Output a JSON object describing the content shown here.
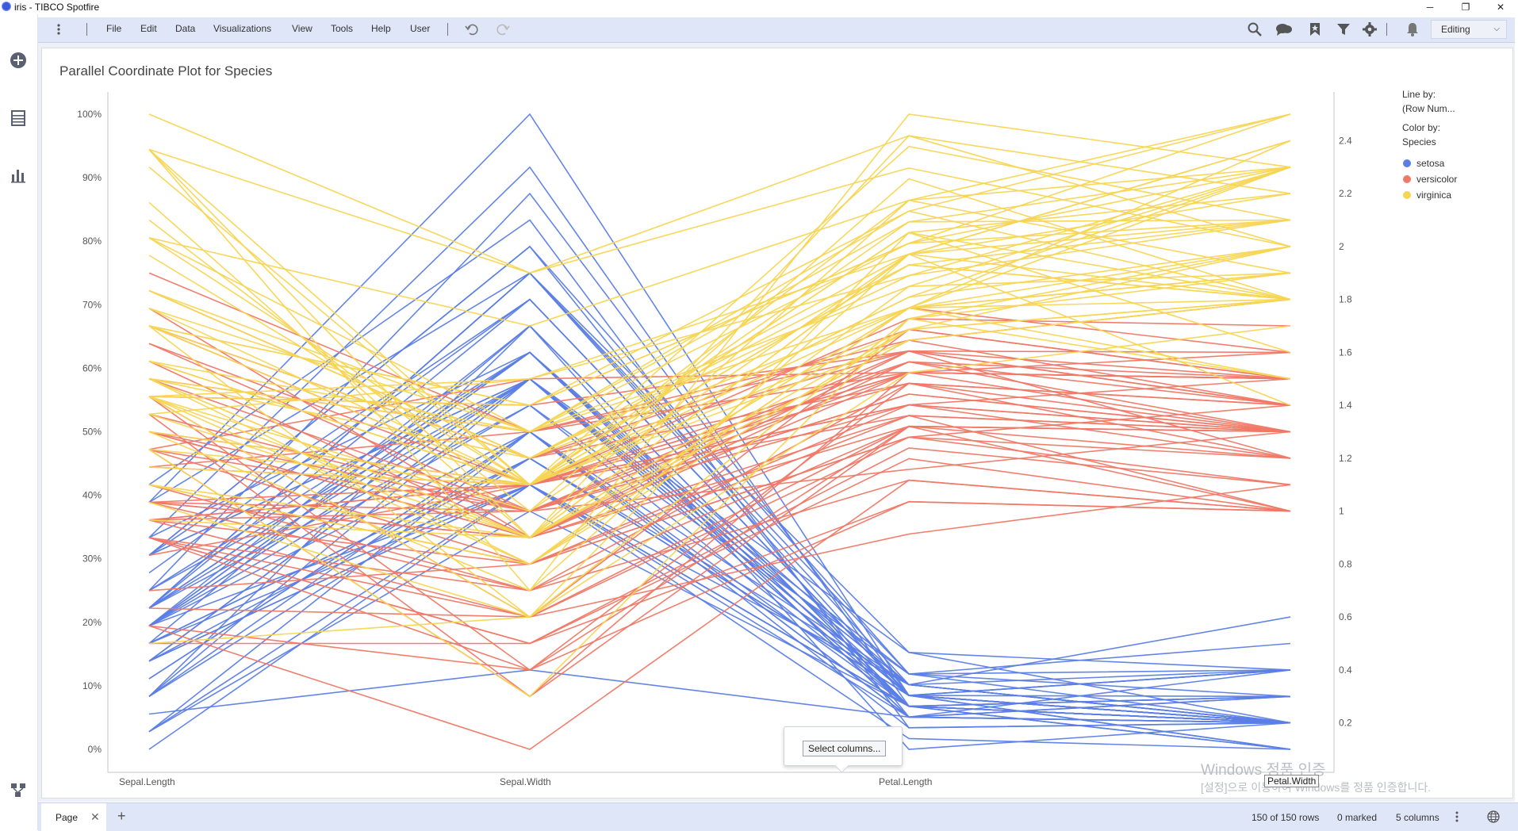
{
  "window": {
    "title": "iris - TIBCO Spotfire",
    "minimize": "─",
    "restore": "❐",
    "close": "✕"
  },
  "menu": [
    "File",
    "Edit",
    "Data",
    "Visualizations",
    "View",
    "Tools",
    "Help",
    "User"
  ],
  "mode_label": "Editing",
  "viz_title": "Parallel Coordinate Plot for Species",
  "legend": {
    "line_by_label": "Line by:",
    "line_by_value": "(Row Num...",
    "color_by_label": "Color by:",
    "color_by_value": "Species",
    "items": [
      {
        "label": "setosa",
        "color": "#5b7ee5"
      },
      {
        "label": "versicolor",
        "color": "#f07866"
      },
      {
        "label": "virginica",
        "color": "#f7d553"
      }
    ]
  },
  "popup": {
    "select_columns": "Select columns..."
  },
  "axis_tooltip": "Petal.Width",
  "watermark": {
    "line1": "Windows 정품 인증",
    "line2": "[설정]으로 이동하여 Windows를 정품 인증합니다."
  },
  "status": {
    "page_tab": "Page",
    "rows": "150 of 150 rows",
    "marked": "0 marked",
    "columns": "5 columns"
  },
  "chart_data": {
    "type": "parallel_coordinates",
    "title": "Parallel Coordinate Plot for Species",
    "axes": [
      "Sepal.Length",
      "Sepal.Width",
      "Petal.Length",
      "Petal.Width"
    ],
    "left_axis_ticks": [
      "100%",
      "90%",
      "80%",
      "70%",
      "60%",
      "50%",
      "40%",
      "30%",
      "20%",
      "10%",
      "0%"
    ],
    "right_axis_label": "Petal.Width",
    "right_axis_ticks": [
      2.4,
      2.2,
      2,
      1.8,
      1.6,
      1.4,
      1.2,
      1,
      0.8,
      0.6,
      0.4,
      0.2
    ],
    "right_axis_range": [
      0.1,
      2.5
    ],
    "color_by": "Species",
    "series_colors": {
      "setosa": "#5b7ee5",
      "versicolor": "#f07866",
      "virginica": "#f7d553"
    },
    "species_order": [
      "setosa",
      "versicolor",
      "virginica"
    ],
    "rows": {
      "setosa": [
        [
          5.1,
          3.5,
          1.4,
          0.2
        ],
        [
          4.9,
          3.0,
          1.4,
          0.2
        ],
        [
          4.7,
          3.2,
          1.3,
          0.2
        ],
        [
          4.6,
          3.1,
          1.5,
          0.2
        ],
        [
          5.0,
          3.6,
          1.4,
          0.2
        ],
        [
          5.4,
          3.9,
          1.7,
          0.4
        ],
        [
          4.6,
          3.4,
          1.4,
          0.3
        ],
        [
          5.0,
          3.4,
          1.5,
          0.2
        ],
        [
          4.4,
          2.9,
          1.4,
          0.2
        ],
        [
          4.9,
          3.1,
          1.5,
          0.1
        ],
        [
          5.4,
          3.7,
          1.5,
          0.2
        ],
        [
          4.8,
          3.4,
          1.6,
          0.2
        ],
        [
          4.8,
          3.0,
          1.4,
          0.1
        ],
        [
          4.3,
          3.0,
          1.1,
          0.1
        ],
        [
          5.8,
          4.0,
          1.2,
          0.2
        ],
        [
          5.7,
          4.4,
          1.5,
          0.4
        ],
        [
          5.4,
          3.9,
          1.3,
          0.4
        ],
        [
          5.1,
          3.5,
          1.4,
          0.3
        ],
        [
          5.7,
          3.8,
          1.7,
          0.3
        ],
        [
          5.1,
          3.8,
          1.5,
          0.3
        ],
        [
          5.4,
          3.4,
          1.7,
          0.2
        ],
        [
          5.1,
          3.7,
          1.5,
          0.4
        ],
        [
          4.6,
          3.6,
          1.0,
          0.2
        ],
        [
          5.1,
          3.3,
          1.7,
          0.5
        ],
        [
          4.8,
          3.4,
          1.9,
          0.2
        ],
        [
          5.0,
          3.0,
          1.6,
          0.2
        ],
        [
          5.0,
          3.4,
          1.6,
          0.4
        ],
        [
          5.2,
          3.5,
          1.5,
          0.2
        ],
        [
          5.2,
          3.4,
          1.4,
          0.2
        ],
        [
          4.7,
          3.2,
          1.6,
          0.2
        ],
        [
          4.8,
          3.1,
          1.6,
          0.2
        ],
        [
          5.4,
          3.4,
          1.5,
          0.4
        ],
        [
          5.2,
          4.1,
          1.5,
          0.1
        ],
        [
          5.5,
          4.2,
          1.4,
          0.2
        ],
        [
          4.9,
          3.1,
          1.5,
          0.2
        ],
        [
          5.0,
          3.2,
          1.2,
          0.2
        ],
        [
          5.5,
          3.5,
          1.3,
          0.2
        ],
        [
          4.9,
          3.6,
          1.4,
          0.1
        ],
        [
          4.4,
          3.0,
          1.3,
          0.2
        ],
        [
          5.1,
          3.4,
          1.5,
          0.2
        ],
        [
          5.0,
          3.5,
          1.3,
          0.3
        ],
        [
          4.5,
          2.3,
          1.3,
          0.3
        ],
        [
          4.4,
          3.2,
          1.3,
          0.2
        ],
        [
          5.0,
          3.5,
          1.6,
          0.6
        ],
        [
          5.1,
          3.8,
          1.9,
          0.4
        ],
        [
          4.8,
          3.0,
          1.4,
          0.3
        ],
        [
          5.1,
          3.8,
          1.6,
          0.2
        ],
        [
          4.6,
          3.2,
          1.4,
          0.2
        ],
        [
          5.3,
          3.7,
          1.5,
          0.2
        ],
        [
          5.0,
          3.3,
          1.4,
          0.2
        ]
      ],
      "versicolor": [
        [
          7.0,
          3.2,
          4.7,
          1.4
        ],
        [
          6.4,
          3.2,
          4.5,
          1.5
        ],
        [
          6.9,
          3.1,
          4.9,
          1.5
        ],
        [
          5.5,
          2.3,
          4.0,
          1.3
        ],
        [
          6.5,
          2.8,
          4.6,
          1.5
        ],
        [
          5.7,
          2.8,
          4.5,
          1.3
        ],
        [
          6.3,
          3.3,
          4.7,
          1.6
        ],
        [
          4.9,
          2.4,
          3.3,
          1.0
        ],
        [
          6.6,
          2.9,
          4.6,
          1.3
        ],
        [
          5.2,
          2.7,
          3.9,
          1.4
        ],
        [
          5.0,
          2.0,
          3.5,
          1.0
        ],
        [
          5.9,
          3.0,
          4.2,
          1.5
        ],
        [
          6.0,
          2.2,
          4.0,
          1.0
        ],
        [
          6.1,
          2.9,
          4.7,
          1.4
        ],
        [
          5.6,
          2.9,
          3.6,
          1.3
        ],
        [
          6.7,
          3.1,
          4.4,
          1.4
        ],
        [
          5.6,
          3.0,
          4.5,
          1.5
        ],
        [
          5.8,
          2.7,
          4.1,
          1.0
        ],
        [
          6.2,
          2.2,
          4.5,
          1.5
        ],
        [
          5.6,
          2.5,
          3.9,
          1.1
        ],
        [
          5.9,
          3.2,
          4.8,
          1.8
        ],
        [
          6.1,
          2.8,
          4.0,
          1.3
        ],
        [
          6.3,
          2.5,
          4.9,
          1.5
        ],
        [
          6.1,
          2.8,
          4.7,
          1.2
        ],
        [
          6.4,
          2.9,
          4.3,
          1.3
        ],
        [
          6.6,
          3.0,
          4.4,
          1.4
        ],
        [
          6.8,
          2.8,
          4.8,
          1.4
        ],
        [
          6.7,
          3.0,
          5.0,
          1.7
        ],
        [
          6.0,
          2.9,
          4.5,
          1.5
        ],
        [
          5.7,
          2.6,
          3.5,
          1.0
        ],
        [
          5.5,
          2.4,
          3.8,
          1.1
        ],
        [
          5.5,
          2.4,
          3.7,
          1.0
        ],
        [
          5.8,
          2.7,
          3.9,
          1.2
        ],
        [
          6.0,
          2.7,
          5.1,
          1.6
        ],
        [
          5.4,
          3.0,
          4.5,
          1.5
        ],
        [
          6.0,
          3.4,
          4.5,
          1.6
        ],
        [
          6.7,
          3.1,
          4.7,
          1.5
        ],
        [
          6.3,
          2.3,
          4.4,
          1.3
        ],
        [
          5.6,
          3.0,
          4.1,
          1.3
        ],
        [
          5.5,
          2.5,
          4.0,
          1.3
        ],
        [
          5.5,
          2.6,
          4.4,
          1.2
        ],
        [
          6.1,
          3.0,
          4.6,
          1.4
        ],
        [
          5.8,
          2.6,
          4.0,
          1.2
        ],
        [
          5.0,
          2.3,
          3.3,
          1.0
        ],
        [
          5.6,
          2.7,
          4.2,
          1.3
        ],
        [
          5.7,
          3.0,
          4.2,
          1.2
        ],
        [
          5.7,
          2.9,
          4.2,
          1.3
        ],
        [
          6.2,
          2.9,
          4.3,
          1.3
        ],
        [
          5.1,
          2.5,
          3.0,
          1.1
        ],
        [
          5.7,
          2.8,
          4.1,
          1.3
        ]
      ],
      "virginica": [
        [
          6.3,
          3.3,
          6.0,
          2.5
        ],
        [
          5.8,
          2.7,
          5.1,
          1.9
        ],
        [
          7.1,
          3.0,
          5.9,
          2.1
        ],
        [
          6.3,
          2.9,
          5.6,
          1.8
        ],
        [
          6.5,
          3.0,
          5.8,
          2.2
        ],
        [
          7.6,
          3.0,
          6.6,
          2.1
        ],
        [
          4.9,
          2.5,
          4.5,
          1.7
        ],
        [
          7.3,
          2.9,
          6.3,
          1.8
        ],
        [
          6.7,
          2.5,
          5.8,
          1.8
        ],
        [
          7.2,
          3.6,
          6.1,
          2.5
        ],
        [
          6.5,
          3.2,
          5.1,
          2.0
        ],
        [
          6.4,
          2.7,
          5.3,
          1.9
        ],
        [
          6.8,
          3.0,
          5.5,
          2.1
        ],
        [
          5.7,
          2.5,
          5.0,
          2.0
        ],
        [
          5.8,
          2.8,
          5.1,
          2.4
        ],
        [
          6.4,
          3.2,
          5.3,
          2.3
        ],
        [
          6.5,
          3.0,
          5.5,
          1.8
        ],
        [
          7.7,
          3.8,
          6.7,
          2.2
        ],
        [
          7.7,
          2.6,
          6.9,
          2.3
        ],
        [
          6.0,
          2.2,
          5.0,
          1.5
        ],
        [
          6.9,
          3.2,
          5.7,
          2.3
        ],
        [
          5.6,
          2.8,
          4.9,
          2.0
        ],
        [
          7.7,
          2.8,
          6.7,
          2.0
        ],
        [
          6.3,
          2.7,
          4.9,
          1.8
        ],
        [
          6.7,
          3.3,
          5.7,
          2.1
        ],
        [
          7.2,
          3.2,
          6.0,
          1.8
        ],
        [
          6.2,
          2.8,
          4.8,
          1.8
        ],
        [
          6.1,
          3.0,
          4.9,
          1.8
        ],
        [
          6.4,
          2.8,
          5.6,
          2.1
        ],
        [
          7.2,
          3.0,
          5.8,
          1.6
        ],
        [
          7.4,
          2.8,
          6.1,
          1.9
        ],
        [
          7.9,
          3.8,
          6.4,
          2.0
        ],
        [
          6.4,
          2.8,
          5.6,
          2.2
        ],
        [
          6.3,
          2.8,
          5.1,
          1.5
        ],
        [
          6.1,
          2.6,
          5.6,
          1.4
        ],
        [
          7.7,
          3.0,
          6.1,
          2.3
        ],
        [
          6.3,
          3.4,
          5.6,
          2.4
        ],
        [
          6.4,
          3.1,
          5.5,
          1.8
        ],
        [
          6.0,
          3.0,
          4.8,
          1.8
        ],
        [
          6.9,
          3.1,
          5.4,
          2.1
        ],
        [
          6.7,
          3.1,
          5.6,
          2.4
        ],
        [
          6.9,
          3.1,
          5.1,
          2.3
        ],
        [
          5.8,
          2.7,
          5.1,
          1.9
        ],
        [
          6.8,
          3.2,
          5.9,
          2.3
        ],
        [
          6.7,
          3.3,
          5.7,
          2.5
        ],
        [
          6.7,
          3.0,
          5.2,
          2.3
        ],
        [
          6.3,
          2.5,
          5.0,
          1.9
        ],
        [
          6.5,
          3.0,
          5.2,
          2.0
        ],
        [
          6.2,
          3.4,
          5.4,
          2.3
        ],
        [
          5.9,
          3.0,
          5.1,
          1.8
        ]
      ]
    }
  }
}
